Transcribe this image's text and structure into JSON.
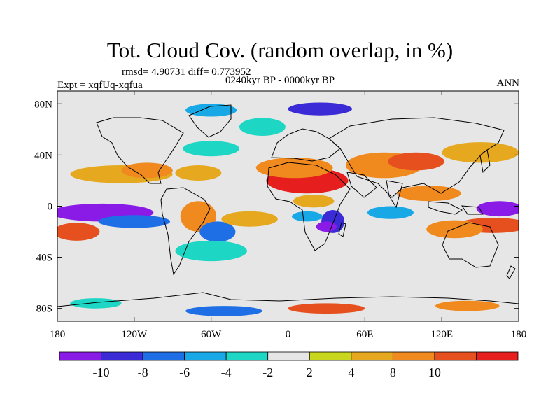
{
  "title": "Tot. Cloud Cov. (random overlap, in %)",
  "stats": "rmsd= 4.90731 diff= 0.773952",
  "experiment": "Expt = xqfUq-xqfua",
  "period": "0240kyr BP - 0000kyr BP",
  "season": "ANN",
  "map": {
    "projection": "cylindrical equidistant",
    "lon_range": [
      -180,
      180
    ],
    "lat_range": [
      -90,
      90
    ],
    "lon_ticks": [
      {
        "value": -180,
        "label": "180"
      },
      {
        "value": -120,
        "label": "120W"
      },
      {
        "value": -60,
        "label": "60W"
      },
      {
        "value": 0,
        "label": "0"
      },
      {
        "value": 60,
        "label": "60E"
      },
      {
        "value": 120,
        "label": "120E"
      },
      {
        "value": 180,
        "label": "180"
      }
    ],
    "lat_ticks": [
      {
        "value": 80,
        "label": "80N"
      },
      {
        "value": 40,
        "label": "40N"
      },
      {
        "value": 0,
        "label": "0"
      },
      {
        "value": -40,
        "label": "40S"
      },
      {
        "value": -80,
        "label": "80S"
      }
    ],
    "background_color": "#e6e6e6"
  },
  "colorbar": {
    "colors": [
      "#8a1ae6",
      "#3a2bd6",
      "#1e6fe6",
      "#19a8e6",
      "#1ed6c4",
      "#e6e6e6",
      "#c8d61e",
      "#e6a81e",
      "#f0891e",
      "#e6501e",
      "#e61e1e"
    ],
    "labels": [
      "-10",
      "-8",
      "-6",
      "-4",
      "-2",
      "2",
      "4",
      "8",
      "10"
    ]
  },
  "regions": [
    {
      "lon": -145,
      "lat": -5,
      "rx": 40,
      "ry": 7,
      "level": 0
    },
    {
      "lon": -120,
      "lat": -12,
      "rx": 28,
      "ry": 5,
      "level": 2
    },
    {
      "lon": -165,
      "lat": -20,
      "rx": 18,
      "ry": 7,
      "level": 9
    },
    {
      "lon": -130,
      "lat": 25,
      "rx": 40,
      "ry": 7,
      "level": 7
    },
    {
      "lon": -110,
      "lat": 28,
      "rx": 20,
      "ry": 6,
      "level": 8
    },
    {
      "lon": -70,
      "lat": 26,
      "rx": 18,
      "ry": 6,
      "level": 7
    },
    {
      "lon": -70,
      "lat": -8,
      "rx": 14,
      "ry": 12,
      "level": 8
    },
    {
      "lon": -55,
      "lat": -20,
      "rx": 14,
      "ry": 8,
      "level": 2
    },
    {
      "lon": -30,
      "lat": -10,
      "rx": 22,
      "ry": 6,
      "level": 7
    },
    {
      "lon": -60,
      "lat": -35,
      "rx": 28,
      "ry": 8,
      "level": 4
    },
    {
      "lon": -60,
      "lat": 45,
      "rx": 22,
      "ry": 6,
      "level": 4
    },
    {
      "lon": -20,
      "lat": 62,
      "rx": 18,
      "ry": 7,
      "level": 4
    },
    {
      "lon": -60,
      "lat": 75,
      "rx": 20,
      "ry": 5,
      "level": 3
    },
    {
      "lon": 25,
      "lat": 76,
      "rx": 25,
      "ry": 5,
      "level": 1
    },
    {
      "lon": 15,
      "lat": 20,
      "rx": 32,
      "ry": 10,
      "level": 10
    },
    {
      "lon": 5,
      "lat": 30,
      "rx": 30,
      "ry": 8,
      "level": 8
    },
    {
      "lon": 20,
      "lat": 4,
      "rx": 16,
      "ry": 5,
      "level": 7
    },
    {
      "lon": 35,
      "lat": -12,
      "rx": 9,
      "ry": 9,
      "level": 1
    },
    {
      "lon": 30,
      "lat": -16,
      "rx": 8,
      "ry": 4,
      "level": 0
    },
    {
      "lon": 15,
      "lat": -8,
      "rx": 12,
      "ry": 4,
      "level": 3
    },
    {
      "lon": 75,
      "lat": 32,
      "rx": 30,
      "ry": 10,
      "level": 8
    },
    {
      "lon": 100,
      "lat": 35,
      "rx": 22,
      "ry": 7,
      "level": 9
    },
    {
      "lon": 150,
      "lat": 42,
      "rx": 30,
      "ry": 8,
      "level": 7
    },
    {
      "lon": 60,
      "lat": 55,
      "rx": 25,
      "ry": 5,
      "level": 5
    },
    {
      "lon": 110,
      "lat": 10,
      "rx": 25,
      "ry": 6,
      "level": 8
    },
    {
      "lon": 165,
      "lat": -2,
      "rx": 18,
      "ry": 6,
      "level": 0
    },
    {
      "lon": 160,
      "lat": -15,
      "rx": 28,
      "ry": 6,
      "level": 9
    },
    {
      "lon": 130,
      "lat": -18,
      "rx": 22,
      "ry": 7,
      "level": 8
    },
    {
      "lon": 80,
      "lat": -5,
      "rx": 18,
      "ry": 5,
      "level": 3
    },
    {
      "lon": -50,
      "lat": -82,
      "rx": 30,
      "ry": 4,
      "level": 2
    },
    {
      "lon": 30,
      "lat": -80,
      "rx": 30,
      "ry": 4,
      "level": 9
    },
    {
      "lon": 140,
      "lat": -78,
      "rx": 25,
      "ry": 4,
      "level": 8
    },
    {
      "lon": -150,
      "lat": -76,
      "rx": 20,
      "ry": 4,
      "level": 4
    }
  ]
}
